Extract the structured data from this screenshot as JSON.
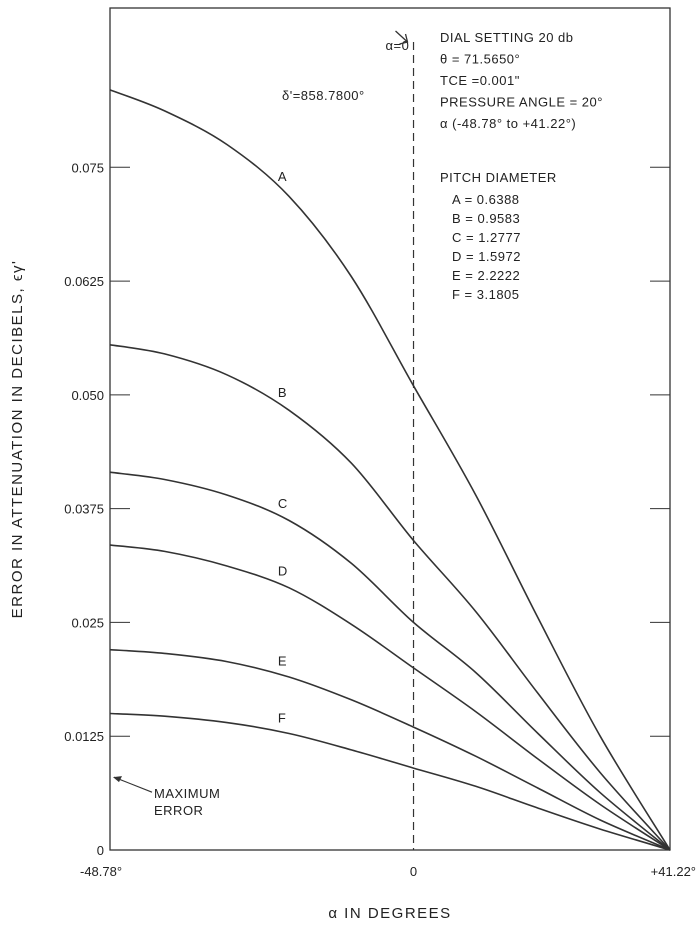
{
  "chart_data": {
    "type": "line",
    "title": "",
    "xlabel": "α IN DEGREES",
    "ylabel": "ERROR IN ATTENUATION IN DECIBELS, ϵγ'",
    "xlim": [
      -48.78,
      41.22
    ],
    "ylim": [
      0,
      0.0925
    ],
    "grid": false,
    "x_ticks": [
      {
        "value": -48.78,
        "label": "-48.78°"
      },
      {
        "value": 0,
        "label": "0"
      },
      {
        "value": 41.22,
        "label": "+41.22°"
      }
    ],
    "y_ticks": [
      {
        "value": 0,
        "label": "0"
      },
      {
        "value": 0.0125,
        "label": "0.0125"
      },
      {
        "value": 0.025,
        "label": "0.025"
      },
      {
        "value": 0.0375,
        "label": "0.0375"
      },
      {
        "value": 0.05,
        "label": "0.050"
      },
      {
        "value": 0.0625,
        "label": "0.0625"
      },
      {
        "value": 0.075,
        "label": "0.075"
      }
    ],
    "reference_line": {
      "x": 0,
      "label": "α=0",
      "style": "dashed"
    },
    "series": [
      {
        "name": "A",
        "x": [
          -48.78,
          -40,
          -30,
          -20,
          -10,
          0,
          10,
          20,
          30,
          41.22
        ],
        "values": [
          0.0835,
          0.0812,
          0.0775,
          0.0718,
          0.063,
          0.051,
          0.039,
          0.0255,
          0.0125,
          0
        ]
      },
      {
        "name": "B",
        "x": [
          -48.78,
          -40,
          -30,
          -20,
          -10,
          0,
          10,
          20,
          30,
          41.22
        ],
        "values": [
          0.0555,
          0.0545,
          0.0522,
          0.0483,
          0.0425,
          0.034,
          0.0262,
          0.0172,
          0.0085,
          0
        ]
      },
      {
        "name": "C",
        "x": [
          -48.78,
          -40,
          -30,
          -20,
          -10,
          0,
          10,
          20,
          30,
          41.22
        ],
        "values": [
          0.0415,
          0.0407,
          0.039,
          0.0362,
          0.0315,
          0.025,
          0.0195,
          0.0128,
          0.0063,
          0
        ]
      },
      {
        "name": "D",
        "x": [
          -48.78,
          -40,
          -30,
          -20,
          -10,
          0,
          10,
          20,
          30,
          41.22
        ],
        "values": [
          0.0335,
          0.0328,
          0.0312,
          0.0288,
          0.0248,
          0.02,
          0.0152,
          0.01,
          0.005,
          0
        ]
      },
      {
        "name": "E",
        "x": [
          -48.78,
          -40,
          -30,
          -20,
          -10,
          0,
          10,
          20,
          30,
          41.22
        ],
        "values": [
          0.022,
          0.0216,
          0.0207,
          0.019,
          0.0165,
          0.0135,
          0.0103,
          0.0068,
          0.0033,
          0
        ]
      },
      {
        "name": "F",
        "x": [
          -48.78,
          -40,
          -30,
          -20,
          -10,
          0,
          10,
          20,
          30,
          41.22
        ],
        "values": [
          0.015,
          0.0147,
          0.014,
          0.0128,
          0.011,
          0.009,
          0.007,
          0.0046,
          0.0023,
          0
        ]
      }
    ],
    "annotations": {
      "delta": "δ'=858.7800°",
      "maximum_error": [
        "MAXIMUM",
        "ERROR"
      ],
      "maximum_error_value": 0.008,
      "info_lines": [
        "DIAL SETTING 20 db",
        "θ = 71.5650°",
        "TCE =0.001\"",
        "PRESSURE ANGLE = 20°",
        "α (-48.78° to +41.22°)"
      ],
      "pitch_title": "PITCH DIAMETER",
      "pitch_lines": [
        "A = 0.6388",
        "B = 0.9583",
        "C = 1.2777",
        "D = 1.5972",
        "E = 2.2222",
        "F = 3.1805"
      ]
    },
    "colors": {
      "line": "#333333",
      "text": "#222222",
      "background": "#ffffff"
    }
  }
}
